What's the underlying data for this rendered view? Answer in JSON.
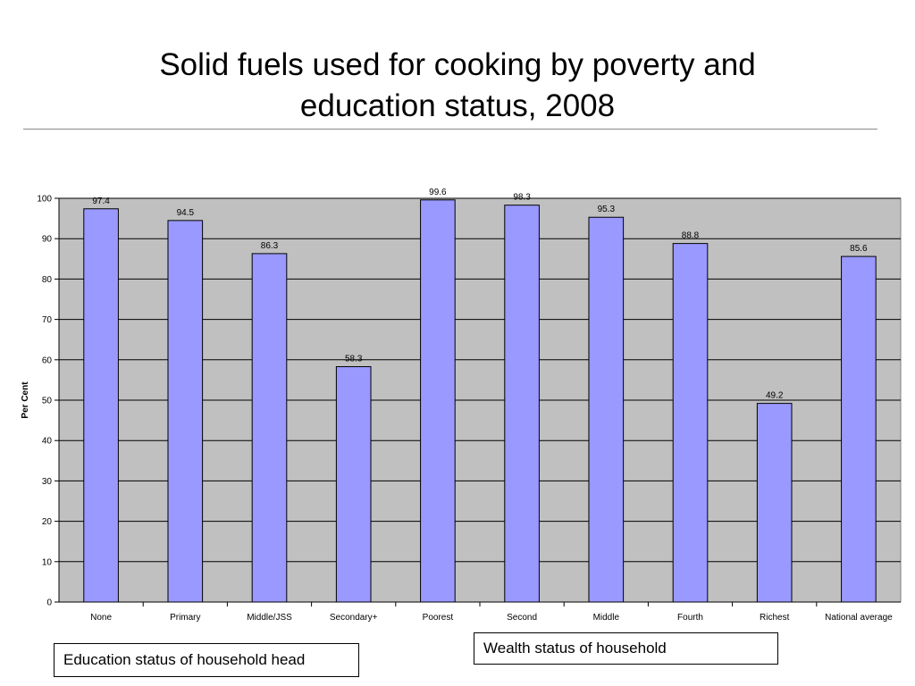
{
  "slide": {
    "title_line1": "Solid fuels used for cooking by poverty and",
    "title_line2": "education status, 2008"
  },
  "chart_data": {
    "type": "bar",
    "title": "",
    "xlabel": "",
    "ylabel": "Per Cent",
    "categories": [
      "None",
      "Primary",
      "Middle/JSS",
      "Secondary+",
      "Poorest",
      "Second",
      "Middle",
      "Fourth",
      "Richest",
      "National average"
    ],
    "values": [
      97.4,
      94.5,
      86.3,
      58.3,
      99.6,
      98.3,
      95.3,
      88.8,
      49.2,
      85.6
    ],
    "ylim": [
      0,
      100
    ],
    "yticks": [
      0,
      10,
      20,
      30,
      40,
      50,
      60,
      70,
      80,
      90,
      100
    ],
    "grid": true,
    "bar_color": "#9999ff",
    "plot_background": "#c0c0c0"
  },
  "legend_boxes": {
    "education": "Education status of household head",
    "wealth": "Wealth status of household"
  }
}
